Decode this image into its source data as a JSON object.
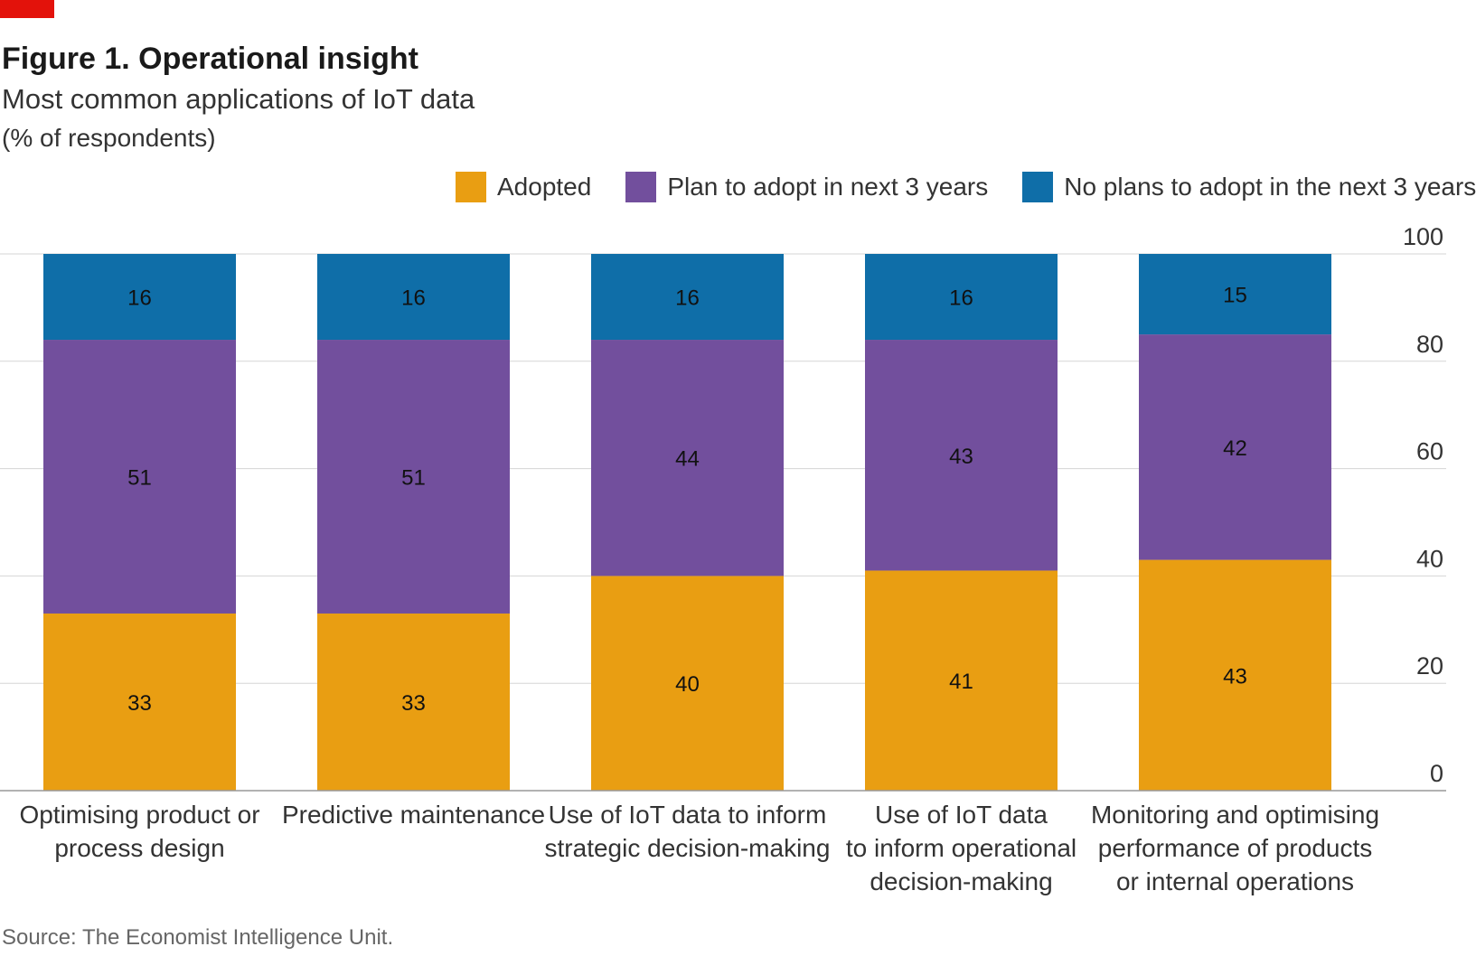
{
  "header": {
    "title": "Figure 1. Operational insight",
    "subtitle": "Most common applications of IoT data",
    "unit": "(% of respondents)"
  },
  "source": "Source: The Economist Intelligence Unit.",
  "colors": {
    "accent": "#e3120b",
    "adopted": "#e99e12",
    "plan": "#724f9d",
    "no_plans": "#0f6ea8",
    "grid": "#d5d5d5",
    "axis": "#999999"
  },
  "chart_data": {
    "type": "bar",
    "stacked": true,
    "title": "Figure 1. Operational insight",
    "subtitle": "Most common applications of IoT data",
    "ylabel": "(% of respondents)",
    "ylim": [
      0,
      100
    ],
    "yticks": [
      0,
      20,
      40,
      60,
      80,
      100
    ],
    "y_axis_side": "right",
    "grid": true,
    "legend_position": "top-right",
    "categories": [
      [
        "Optimising product or",
        "process design"
      ],
      [
        "Predictive maintenance"
      ],
      [
        "Use of IoT data to inform",
        "strategic decision-making"
      ],
      [
        "Use of IoT data",
        "to inform operational",
        "decision-making"
      ],
      [
        "Monitoring and optimising",
        "performance of products",
        "or internal operations"
      ]
    ],
    "series": [
      {
        "name": "Adopted",
        "color": "#e99e12",
        "values": [
          33,
          33,
          40,
          41,
          43
        ]
      },
      {
        "name": "Plan to adopt in next 3 years",
        "color": "#724f9d",
        "values": [
          51,
          51,
          44,
          43,
          42
        ]
      },
      {
        "name": "No plans to adopt in the next 3 years",
        "color": "#0f6ea8",
        "values": [
          16,
          16,
          16,
          16,
          15
        ]
      }
    ]
  }
}
